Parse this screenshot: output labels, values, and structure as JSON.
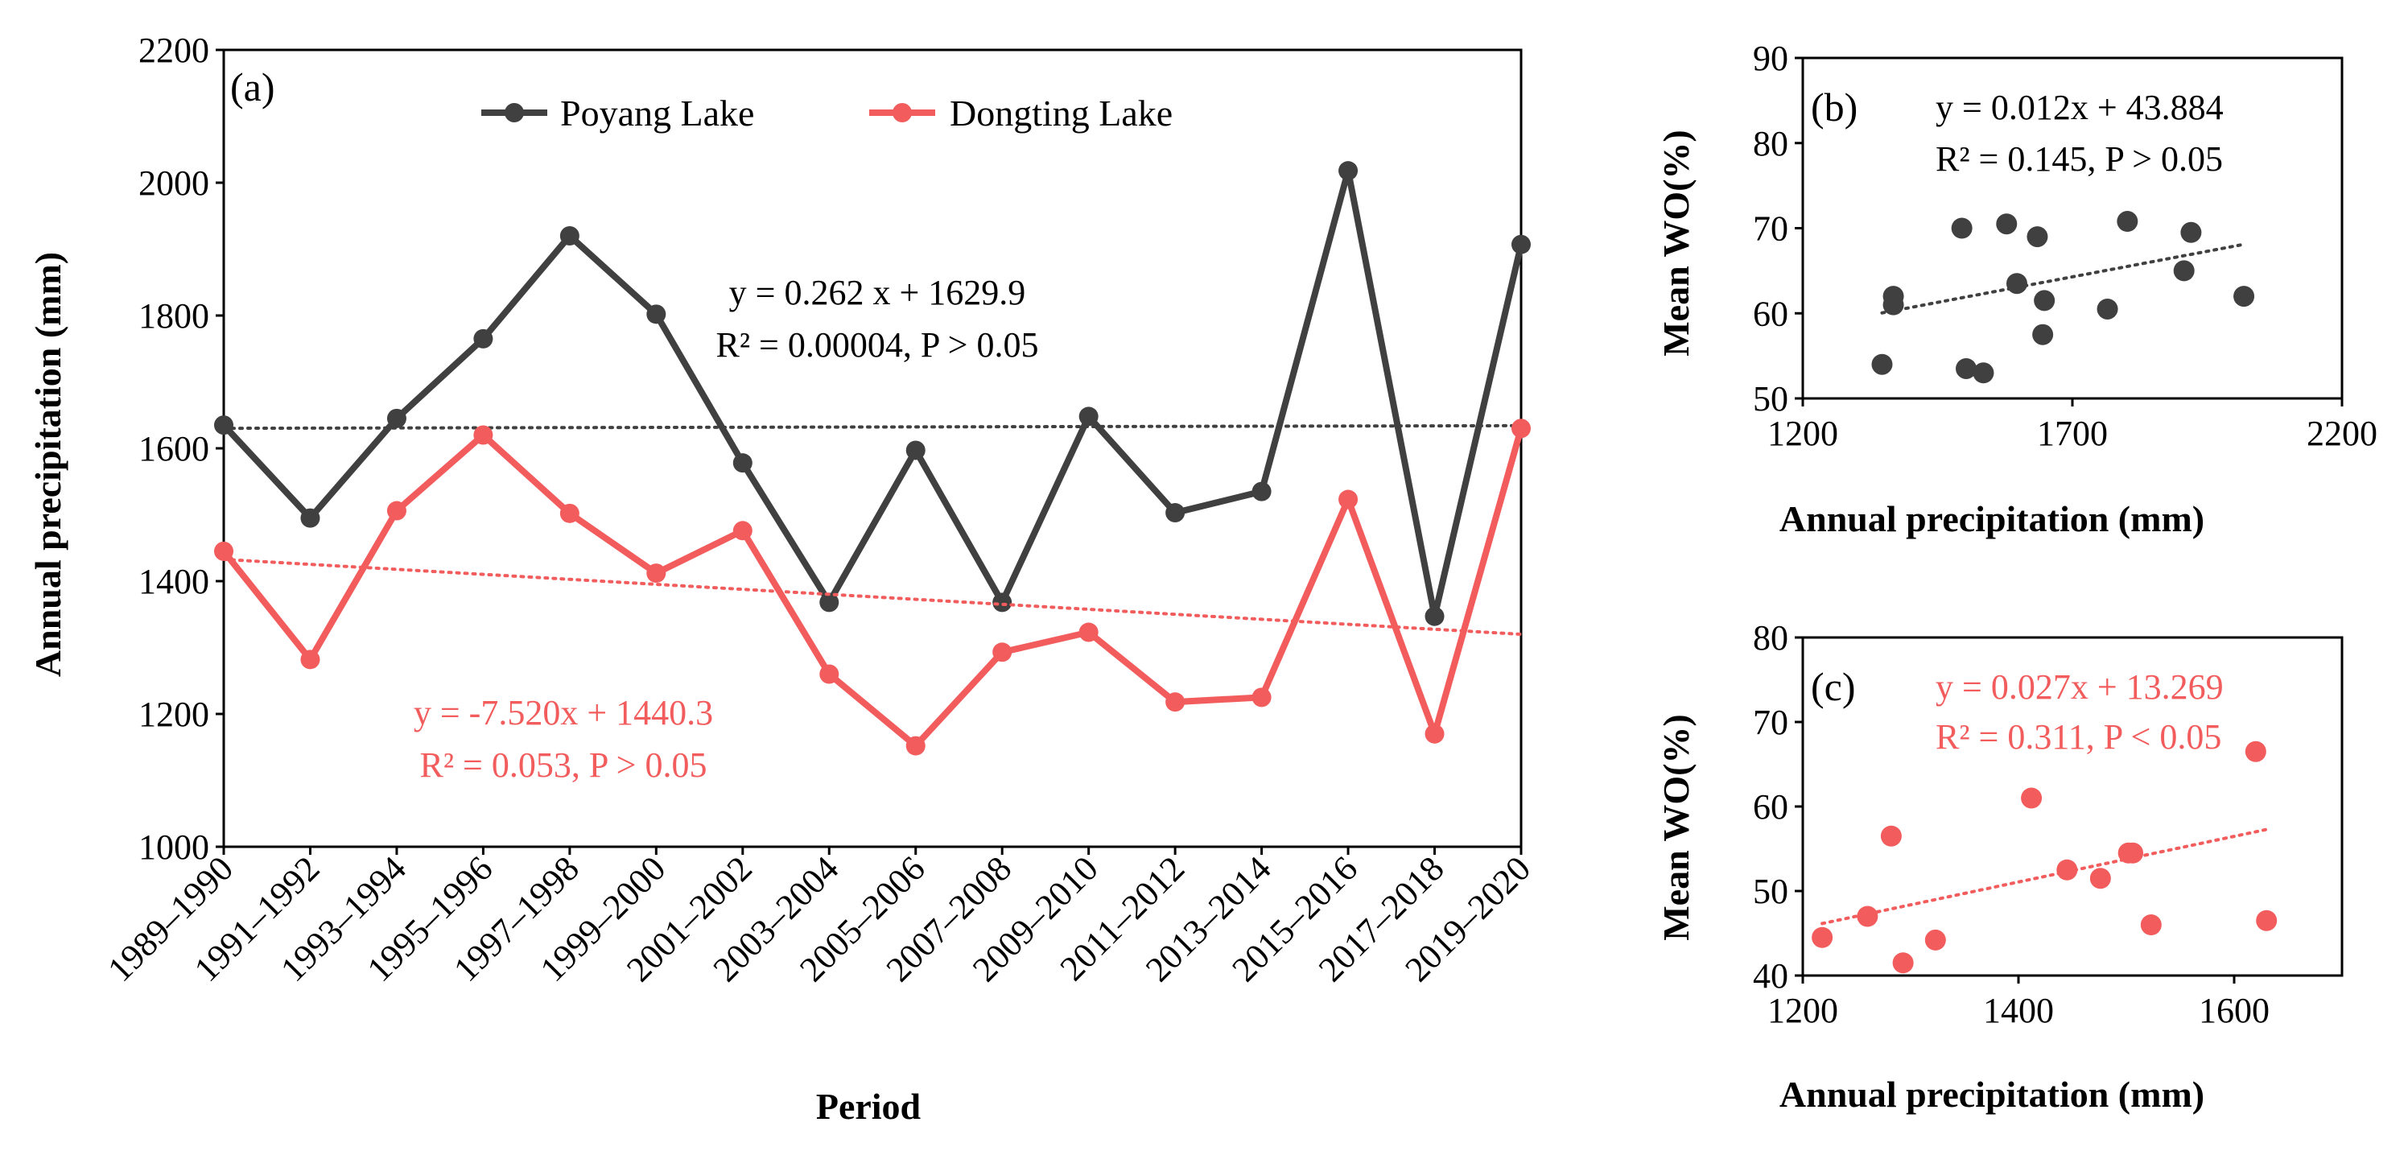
{
  "chart_data": [
    {
      "id": "a",
      "type": "line",
      "panel_label": "(a)",
      "xlabel": "Period",
      "ylabel": "Annual precipitation (mm)",
      "ylim": [
        1000,
        2200
      ],
      "yticks": [
        1000,
        1200,
        1400,
        1600,
        1800,
        2000,
        2200
      ],
      "categories": [
        "1989–1990",
        "1991–1992",
        "1993–1994",
        "1995–1996",
        "1997–1998",
        "1999–2000",
        "2001–2002",
        "2003–2004",
        "2005–2006",
        "2007–2008",
        "2009–2010",
        "2011–2012",
        "2013–2014",
        "2015–2016",
        "2017–2018",
        "2019–2020"
      ],
      "series": [
        {
          "name": "Poyang Lake",
          "color": "#404040",
          "values": [
            1635,
            1495,
            1645,
            1765,
            1920,
            1802,
            1578,
            1368,
            1597,
            1368,
            1648,
            1503,
            1535,
            2018,
            1347,
            1907
          ],
          "trend": {
            "slope": 0.262,
            "intercept": 1629.9
          },
          "equation": "y = 0.262 x + 1629.9",
          "stats": "R² = 0.00004, P > 0.05"
        },
        {
          "name": "Dongting Lake",
          "color": "#F25C5C",
          "values": [
            1445,
            1282,
            1506,
            1620,
            1502,
            1412,
            1476,
            1260,
            1152,
            1293,
            1323,
            1218,
            1225,
            1523,
            1170,
            1630
          ],
          "trend": {
            "slope": -7.52,
            "intercept": 1440.3
          },
          "equation": "y = -7.520x + 1440.3",
          "stats": "R² = 0.053, P > 0.05"
        }
      ]
    },
    {
      "id": "b",
      "type": "scatter",
      "panel_label": "(b)",
      "xlabel": "Annual precipitation (mm)",
      "ylabel": "Mean WO(%)",
      "xlim": [
        1200,
        2200
      ],
      "ylim": [
        50,
        90
      ],
      "xticks": [
        1200,
        1700,
        2200
      ],
      "yticks": [
        50,
        60,
        70,
        80,
        90
      ],
      "color": "#404040",
      "points": [
        [
          1347,
          54
        ],
        [
          1368,
          62
        ],
        [
          1368,
          61
        ],
        [
          1495,
          70
        ],
        [
          1503,
          53.5
        ],
        [
          1535,
          53
        ],
        [
          1578,
          70.5
        ],
        [
          1597,
          63.5
        ],
        [
          1635,
          69
        ],
        [
          1645,
          57.5
        ],
        [
          1648,
          61.5
        ],
        [
          1765,
          60.5
        ],
        [
          1802,
          70.8
        ],
        [
          1907,
          65
        ],
        [
          1920,
          69.5
        ],
        [
          2018,
          62
        ]
      ],
      "trend": {
        "slope": 0.012,
        "intercept": 43.884
      },
      "equation": "y = 0.012x + 43.884",
      "stats": "R² = 0.145, P > 0.05"
    },
    {
      "id": "c",
      "type": "scatter",
      "panel_label": "(c)",
      "xlabel": "Annual precipitation (mm)",
      "ylabel": "Mean WO(%)",
      "xlim": [
        1200,
        1700
      ],
      "ylim": [
        40,
        80
      ],
      "xticks": [
        1200,
        1400,
        1600
      ],
      "yticks": [
        40,
        50,
        60,
        70,
        80
      ],
      "color": "#F25C5C",
      "points": [
        [
          1218,
          44.5
        ],
        [
          1260,
          47
        ],
        [
          1282,
          56.5
        ],
        [
          1293,
          41.5
        ],
        [
          1323,
          44.2
        ],
        [
          1412,
          61
        ],
        [
          1445,
          52.5
        ],
        [
          1476,
          51.5
        ],
        [
          1502,
          54.5
        ],
        [
          1506,
          54.5
        ],
        [
          1523,
          46
        ],
        [
          1620,
          66.5
        ],
        [
          1630,
          46.5
        ]
      ],
      "trend": {
        "slope": 0.027,
        "intercept": 13.269
      },
      "equation": "y = 0.027x + 13.269",
      "stats": "R² = 0.311, P < 0.05"
    }
  ]
}
